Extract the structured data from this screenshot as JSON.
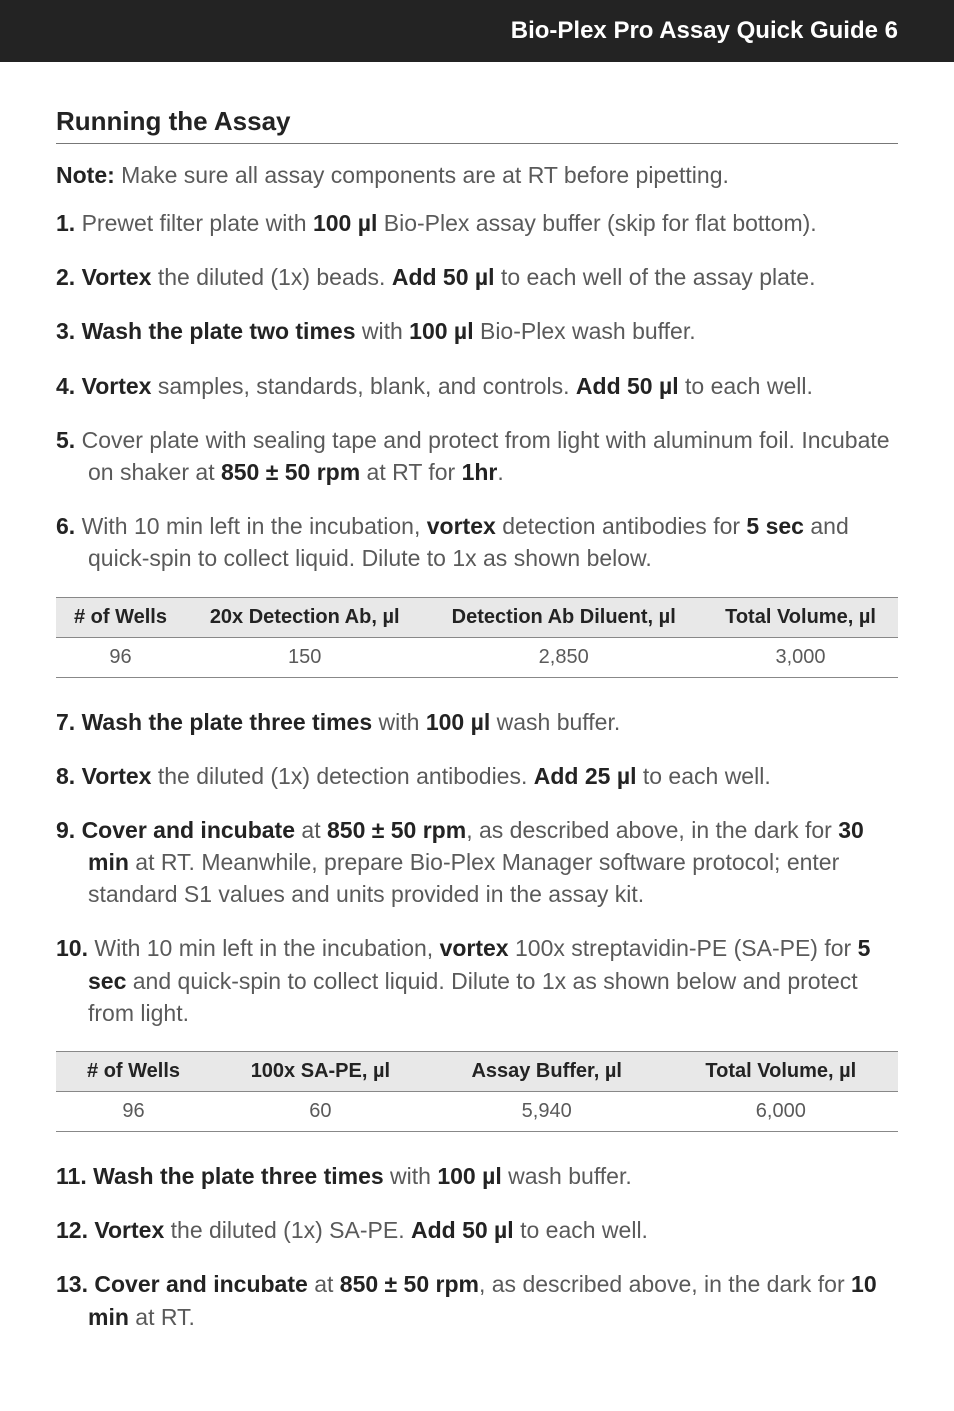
{
  "header": {
    "title": "Bio-Plex Pro Assay Quick Guide 6"
  },
  "section": {
    "title": "Running the Assay"
  },
  "note": {
    "label": "Note:",
    "text": " Make sure all assay components are at RT before pipetting."
  },
  "steps": {
    "s1": {
      "num": "1.",
      "a": " Prewet filter plate with ",
      "b": "100 µl",
      "c": " Bio-Plex assay buffer (skip for flat bottom)."
    },
    "s2": {
      "num": "2. Vortex",
      "a": " the diluted (1x) beads. ",
      "b": "Add 50 µl",
      "c": " to each well of the assay plate."
    },
    "s3": {
      "num": "3. Wash the plate two times",
      "a": " with ",
      "b": "100 µl",
      "c": " Bio-Plex wash buffer."
    },
    "s4": {
      "num": "4. Vortex",
      "a": " samples, standards, blank, and controls. ",
      "b": "Add 50 µl",
      "c": " to each well."
    },
    "s5": {
      "num": "5.",
      "a": " Cover plate with sealing tape and protect from light with aluminum foil. Incubate on shaker at ",
      "b": "850 ± 50 rpm",
      "c": " at RT for ",
      "d": "1hr",
      "e": "."
    },
    "s6": {
      "num": "6.",
      "a": " With 10 min left in the incubation, ",
      "b": "vortex",
      "c": " detection antibodies for ",
      "d": "5 sec",
      "e": " and quick-spin to collect liquid. Dilute to 1x as shown below."
    },
    "s7": {
      "num": "7. Wash the plate three times",
      "a": " with ",
      "b": "100 µl",
      "c": " wash buffer."
    },
    "s8": {
      "num": "8. Vortex",
      "a": " the diluted (1x) detection antibodies. ",
      "b": "Add 25 µl",
      "c": " to each well."
    },
    "s9": {
      "num": "9. Cover and incubate",
      "a": " at ",
      "b": "850 ± 50 rpm",
      "c": ", as described above, in the dark for ",
      "d": "30 min",
      "e": " at RT. Meanwhile, prepare Bio-Plex Manager software protocol; enter standard S1 values and units provided in the assay kit."
    },
    "s10": {
      "num": "10.",
      "a": " With 10 min left in the incubation, ",
      "b": "vortex",
      "c": " 100x streptavidin-PE (SA-PE) for ",
      "d": "5 sec",
      "e": " and quick-spin to collect liquid. Dilute to 1x as shown below and protect from light."
    },
    "s11": {
      "num": "11. Wash the plate three times",
      "a": " with ",
      "b": "100 µl",
      "c": " wash buffer."
    },
    "s12": {
      "num": "12. Vortex",
      "a": " the diluted (1x) SA-PE. ",
      "b": "Add 50 µl",
      "c": " to each well."
    },
    "s13": {
      "num": "13. Cover and incubate",
      "a": " at ",
      "b": "850 ± 50 rpm",
      "c": ", as described above, in the dark for ",
      "d": "10 min",
      "e": " at RT."
    }
  },
  "table1": {
    "headers": {
      "c1": "# of Wells",
      "c2": "20x Detection Ab, µl",
      "c3": "Detection Ab Diluent, µl",
      "c4": "Total Volume, µl"
    },
    "row": {
      "c1": "96",
      "c2": "150",
      "c3": "2,850",
      "c4": "3,000"
    }
  },
  "table2": {
    "headers": {
      "c1": "# of Wells",
      "c2": "100x SA-PE, µl",
      "c3": "Assay Buffer, µl",
      "c4": "Total Volume, µl"
    },
    "row": {
      "c1": "96",
      "c2": "60",
      "c3": "5,940",
      "c4": "6,000"
    }
  }
}
